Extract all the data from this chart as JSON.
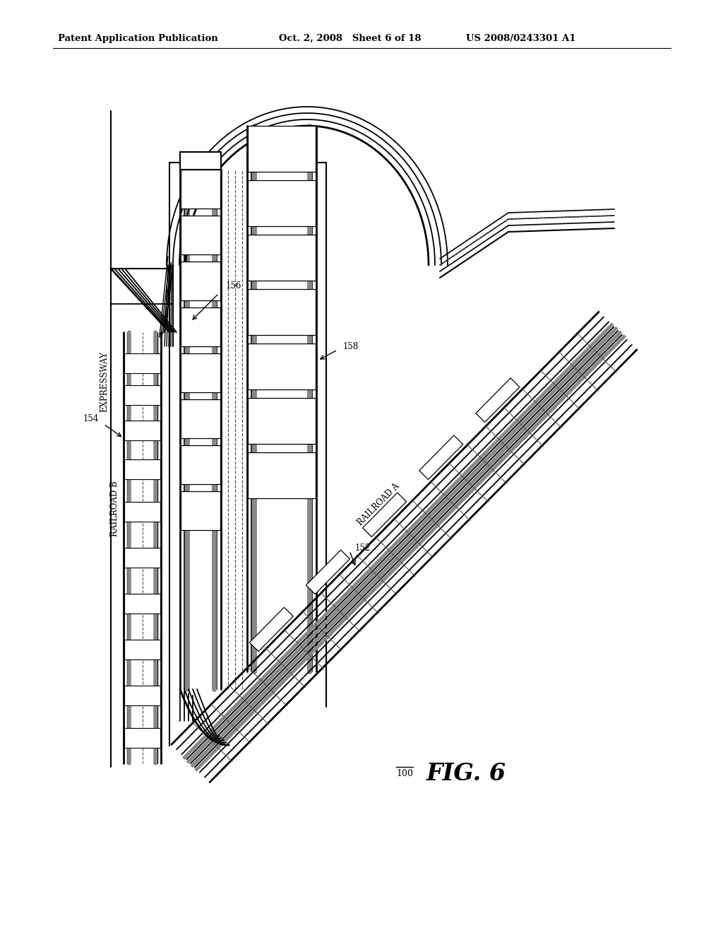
{
  "header_left": "Patent Application Publication",
  "header_mid": "Oct. 2, 2008   Sheet 6 of 18",
  "header_right": "US 2008/0243301 A1",
  "fig_label": "FIG. 6",
  "fig_number": "100",
  "label_expressway": "EXPRESSWAY",
  "label_railroad_a": "RAILROAD A",
  "label_railroad_b": "RAILROAD B",
  "ref_100": "100",
  "ref_152": "152",
  "ref_154": "154",
  "ref_156": "156",
  "ref_158": "158",
  "bg": "#ffffff",
  "lc": "#000000",
  "gc": "#888888",
  "dc": "#555555"
}
